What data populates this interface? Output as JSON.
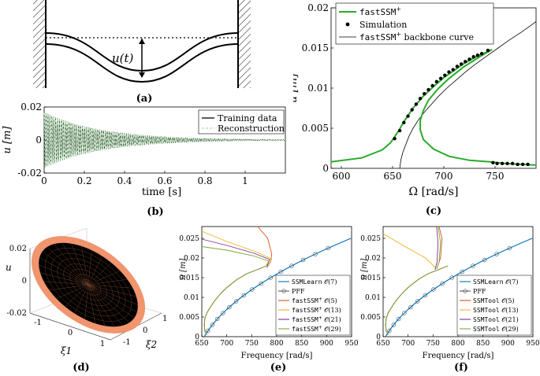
{
  "labels": {
    "a": "(a)",
    "b": "(b)",
    "c": "(c)",
    "d": "(d)",
    "e": "(e)",
    "f": "(f)"
  },
  "panel_a": {
    "annotation": "u(t)"
  },
  "chart_data": [
    {
      "id": "b",
      "type": "line",
      "xlabel": "time [s]",
      "ylabel": "u [m]",
      "xlim": [
        0,
        1.2
      ],
      "ylim": [
        -0.02,
        0.02
      ],
      "xticks": [
        "0",
        "0.2",
        "0.4",
        "0.6",
        "0.8",
        "1"
      ],
      "xtick_values": [
        0,
        0.2,
        0.4,
        0.6,
        0.8,
        1.0
      ],
      "yticks": [
        "-0.02",
        "0",
        "0.02"
      ],
      "ytick_values": [
        -0.02,
        0,
        0.02
      ],
      "legend": {
        "position": "top-right",
        "entries": [
          "Training data",
          "Reconstruction"
        ]
      },
      "series": [
        {
          "name": "Training data",
          "color": "#000000",
          "amplitude0": 0.017,
          "decay": 3.6,
          "freq_hz": 105
        },
        {
          "name": "Reconstruction",
          "color": "#9ee59e",
          "amplitude0": 0.017,
          "decay": 3.6,
          "freq_hz": 105
        }
      ]
    },
    {
      "id": "c",
      "type": "line",
      "xlabel": "Ω [rad/s]",
      "ylabel": "u [m]",
      "xlim": [
        590,
        790
      ],
      "ylim": [
        0,
        0.02
      ],
      "xticks": [
        "600",
        "650",
        "700",
        "750"
      ],
      "xtick_values": [
        600,
        650,
        700,
        750
      ],
      "yticks": [
        "0",
        "0.005",
        "0.01",
        "0.015",
        "0.02"
      ],
      "ytick_values": [
        0,
        0.005,
        0.01,
        0.015,
        0.02
      ],
      "legend": {
        "position": "top-left",
        "entries": [
          {
            "text": "fastSSM",
            "sup": "+",
            "suffix": ""
          },
          {
            "text": "Simulation",
            "sup": "",
            "suffix": ""
          },
          {
            "text": "fastSSM",
            "sup": "+",
            "suffix": " backbone curve"
          }
        ]
      },
      "series": [
        {
          "name": "fastSSM+",
          "color": "#2aab2a",
          "upper": [
            [
              590,
              0.0008
            ],
            [
              620,
              0.0013
            ],
            [
              640,
              0.0023
            ],
            [
              648,
              0.0032
            ],
            [
              655,
              0.0045
            ],
            [
              662,
              0.006
            ],
            [
              670,
              0.0075
            ],
            [
              680,
              0.009
            ],
            [
              690,
              0.0102
            ],
            [
              700,
              0.0113
            ],
            [
              710,
              0.0122
            ],
            [
              720,
              0.0131
            ],
            [
              730,
              0.0138
            ],
            [
              740,
              0.0144
            ],
            [
              747,
              0.0148
            ]
          ],
          "unstable": [
            [
              747,
              0.0148
            ],
            [
              735,
              0.0139
            ],
            [
              720,
              0.0127
            ],
            [
              705,
              0.0112
            ],
            [
              695,
              0.01
            ],
            [
              685,
              0.0085
            ],
            [
              680,
              0.0072
            ],
            [
              677,
              0.006
            ],
            [
              677,
              0.0048
            ],
            [
              680,
              0.0036
            ],
            [
              690,
              0.0024
            ],
            [
              705,
              0.0015
            ],
            [
              725,
              0.001
            ],
            [
              745,
              0.0008
            ],
            [
              760,
              0.0006
            ],
            [
              790,
              0.0004
            ]
          ]
        },
        {
          "name": "Simulation",
          "color": "#000000",
          "points": [
            [
              652,
              0.0037
            ],
            [
              657,
              0.0047
            ],
            [
              661,
              0.0057
            ],
            [
              665,
              0.0065
            ],
            [
              669,
              0.0073
            ],
            [
              673,
              0.008
            ],
            [
              677,
              0.0087
            ],
            [
              681,
              0.0093
            ],
            [
              685,
              0.0098
            ],
            [
              689,
              0.0103
            ],
            [
              693,
              0.0108
            ],
            [
              697,
              0.0112
            ],
            [
              701,
              0.0116
            ],
            [
              705,
              0.012
            ],
            [
              709,
              0.0123
            ],
            [
              713,
              0.0127
            ],
            [
              717,
              0.013
            ],
            [
              721,
              0.0133
            ],
            [
              725,
              0.0136
            ],
            [
              729,
              0.0139
            ],
            [
              733,
              0.0141
            ],
            [
              737,
              0.0143
            ],
            [
              743,
              0.0147
            ],
            [
              748,
              0.0007
            ],
            [
              752,
              0.0006
            ],
            [
              757,
              0.0006
            ],
            [
              762,
              0.0006
            ],
            [
              767,
              0.0006
            ],
            [
              772,
              0.0005
            ],
            [
              777,
              0.0005
            ],
            [
              782,
              0.0005
            ]
          ]
        },
        {
          "name": "fastSSM+ backbone curve",
          "color": "#000000",
          "points": [
            [
              657,
              0.0
            ],
            [
              658,
              0.001
            ],
            [
              660,
              0.002
            ],
            [
              663,
              0.003
            ],
            [
              666,
              0.004
            ],
            [
              670,
              0.005
            ],
            [
              675,
              0.006
            ],
            [
              681,
              0.007
            ],
            [
              688,
              0.008
            ],
            [
              695,
              0.009
            ],
            [
              703,
              0.01
            ],
            [
              712,
              0.011
            ],
            [
              721,
              0.012
            ],
            [
              731,
              0.013
            ],
            [
              742,
              0.014
            ],
            [
              753,
              0.015
            ],
            [
              764,
              0.016
            ],
            [
              776,
              0.017
            ],
            [
              787,
              0.018
            ],
            [
              790,
              0.0183
            ]
          ]
        }
      ]
    },
    {
      "id": "d",
      "type": "scatter",
      "zlabel": "u",
      "xlabel": "ξ1",
      "ylabel": "ξ2",
      "zticks": [
        "-0.02",
        "0",
        "0.02"
      ],
      "xticks": [
        "-1",
        "0",
        "1"
      ],
      "yticks": [
        "-1",
        "0",
        "1"
      ],
      "colors": {
        "surface": "#f0956e",
        "mesh": "#000000"
      }
    },
    {
      "id": "e",
      "type": "line",
      "xlabel": "Frequency [rad/s]",
      "ylabel": "u [m]",
      "xlim": [
        650,
        950
      ],
      "ylim": [
        0,
        0.028
      ],
      "xticks": [
        "650",
        "700",
        "750",
        "800",
        "850",
        "900",
        "950"
      ],
      "xtick_values": [
        650,
        700,
        750,
        800,
        850,
        900,
        950
      ],
      "yticks": [
        "0",
        "0.005",
        "0.01",
        "0.015",
        "0.02",
        "0.025"
      ],
      "ytick_values": [
        0,
        0.005,
        0.01,
        0.015,
        0.02,
        0.025
      ],
      "legend": {
        "position": "bottom-right",
        "entries": [
          {
            "text": "SSMLearn",
            "sup": "",
            "order": "𝒪(7)"
          },
          {
            "text": "PFF",
            "sup": "",
            "order": ""
          },
          {
            "text": "fastSSM",
            "sup": "+",
            "order": "𝒪(5)"
          },
          {
            "text": "fastSSM",
            "sup": "+",
            "order": "𝒪(13)"
          },
          {
            "text": "fastSSM",
            "sup": "+",
            "order": "𝒪(21)"
          },
          {
            "text": "fastSSM",
            "sup": "+",
            "order": "𝒪(29)"
          }
        ]
      },
      "series": [
        {
          "name": "SSMLearn 𝒪(7)",
          "color": "#0072bd",
          "kind": "main"
        },
        {
          "name": "PFF",
          "color": "#555555",
          "kind": "markers"
        },
        {
          "name": "fastSSM+ 𝒪(5)",
          "color": "#d95319",
          "tip": [
            [
              762,
              0.028
            ],
            [
              782,
              0.025
            ],
            [
              790,
              0.021
            ],
            [
              788,
              0.019
            ],
            [
              780,
              0.0175
            ]
          ]
        },
        {
          "name": "fastSSM+ 𝒪(13)",
          "color": "#edb120",
          "tip": [
            [
              650,
              0.0268
            ],
            [
              700,
              0.0242
            ],
            [
              760,
              0.0215
            ],
            [
              790,
              0.0197
            ],
            [
              783,
              0.018
            ]
          ]
        },
        {
          "name": "fastSSM+ 𝒪(21)",
          "color": "#7e2f8e",
          "tip": [
            [
              650,
              0.0248
            ],
            [
              700,
              0.0232
            ],
            [
              755,
              0.0212
            ],
            [
              786,
              0.0196
            ],
            [
              781,
              0.018
            ]
          ]
        },
        {
          "name": "fastSSM+ 𝒪(29)",
          "color": "#77ac30",
          "tip": [
            [
              650,
              0.0229
            ],
            [
              700,
              0.022
            ],
            [
              755,
              0.0205
            ],
            [
              784,
              0.0192
            ],
            [
              779,
              0.018
            ]
          ]
        }
      ]
    },
    {
      "id": "f",
      "type": "line",
      "xlabel": "Frequency [rad/s]",
      "ylabel": "u [m]",
      "xlim": [
        650,
        950
      ],
      "ylim": [
        0,
        0.028
      ],
      "xticks": [
        "650",
        "700",
        "750",
        "800",
        "850",
        "900",
        "950"
      ],
      "xtick_values": [
        650,
        700,
        750,
        800,
        850,
        900,
        950
      ],
      "yticks": [
        "0",
        "0.005",
        "0.01",
        "0.015",
        "0.02",
        "0.025"
      ],
      "ytick_values": [
        0,
        0.005,
        0.01,
        0.015,
        0.02,
        0.025
      ],
      "legend": {
        "position": "bottom-right",
        "entries": [
          {
            "text": "SSMLearn",
            "sup": "",
            "order": "𝒪(7)"
          },
          {
            "text": "PFF",
            "sup": "",
            "order": ""
          },
          {
            "text": "SSMTool",
            "sup": "",
            "order": "𝒪(5)"
          },
          {
            "text": "SSMTool",
            "sup": "",
            "order": "𝒪(13)"
          },
          {
            "text": "SSMTool",
            "sup": "",
            "order": "𝒪(21)"
          },
          {
            "text": "SSMTool",
            "sup": "",
            "order": "𝒪(29)"
          }
        ]
      },
      "series": [
        {
          "name": "SSMLearn 𝒪(7)",
          "color": "#0072bd",
          "kind": "main"
        },
        {
          "name": "PFF",
          "color": "#555555",
          "kind": "markers"
        },
        {
          "name": "SSMTool 𝒪(5)",
          "color": "#d95319",
          "tip": [
            [
              762,
              0.028
            ],
            [
              768,
              0.025
            ],
            [
              765,
              0.02
            ],
            [
              758,
              0.0175
            ]
          ]
        },
        {
          "name": "SSMTool 𝒪(13)",
          "color": "#edb120",
          "tip": [
            [
              650,
              0.0262
            ],
            [
              690,
              0.0232
            ],
            [
              735,
              0.02
            ],
            [
              755,
              0.0175
            ]
          ]
        },
        {
          "name": "SSMTool 𝒪(21)",
          "color": "#7e2f8e",
          "tip": [
            [
              757,
              0.028
            ],
            [
              760,
              0.024
            ],
            [
              758,
              0.019
            ],
            [
              754,
              0.017
            ]
          ]
        },
        {
          "name": "SSMTool 𝒪(29)",
          "color": "#77ac30",
          "tip": [
            [
              760,
              0.028
            ],
            [
              765,
              0.024
            ],
            [
              762,
              0.019
            ],
            [
              757,
              0.0172
            ]
          ]
        }
      ]
    }
  ]
}
